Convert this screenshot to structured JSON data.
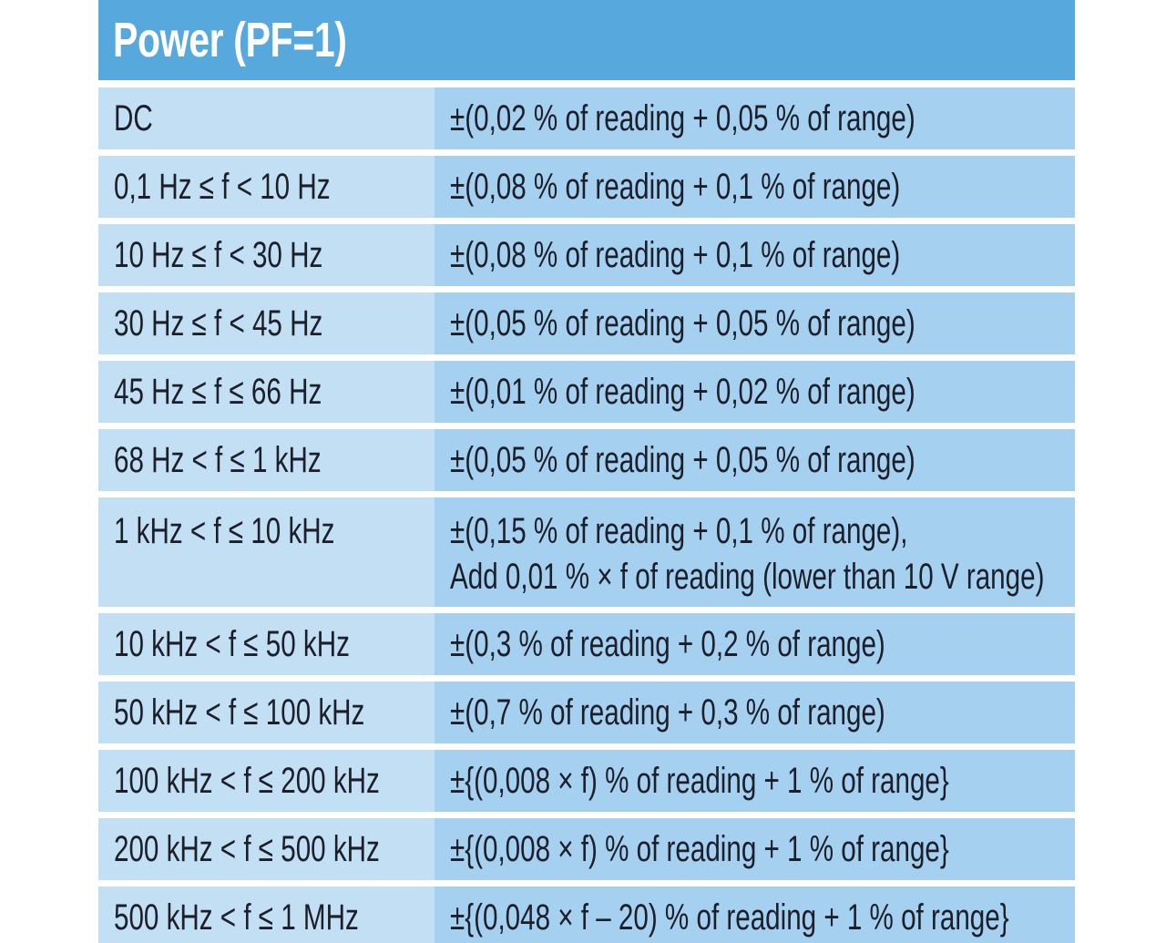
{
  "title": "Power (PF=1)",
  "colors": {
    "header_bg": "#56a8dd",
    "left_cell_bg": "#c3dff4",
    "right_cell_bg": "#a6d0f0",
    "text": "#1b1f2a"
  },
  "rows": [
    {
      "range": "DC",
      "accuracy": [
        "±(0,02 % of reading + 0,05 % of range)"
      ]
    },
    {
      "range": "0,1 Hz ≤ f < 10 Hz",
      "accuracy": [
        "±(0,08 % of reading + 0,1 % of range)"
      ]
    },
    {
      "range": "10 Hz ≤ f < 30 Hz",
      "accuracy": [
        "±(0,08 % of reading + 0,1 % of range)"
      ]
    },
    {
      "range": "30 Hz ≤ f < 45 Hz",
      "accuracy": [
        "±(0,05 % of reading + 0,05 % of range)"
      ]
    },
    {
      "range": "45 Hz ≤ f ≤ 66 Hz",
      "accuracy": [
        "±(0,01 % of reading + 0,02 % of range)"
      ]
    },
    {
      "range": "68 Hz < f ≤ 1 kHz",
      "accuracy": [
        "±(0,05 % of reading + 0,05 % of range)"
      ]
    },
    {
      "range": "1 kHz < f ≤ 10 kHz",
      "accuracy": [
        "±(0,15 % of reading + 0,1 % of range),",
        "Add 0,01 % × f of reading (lower than 10 V range)"
      ]
    },
    {
      "range": "10 kHz < f ≤ 50 kHz",
      "accuracy": [
        "±(0,3 % of reading + 0,2 % of range)"
      ]
    },
    {
      "range": "50 kHz < f ≤ 100 kHz",
      "accuracy": [
        "±(0,7 % of reading + 0,3 % of range)"
      ]
    },
    {
      "range": "100 kHz < f ≤ 200 kHz",
      "accuracy": [
        "±{(0,008 × f) % of reading + 1 % of range}"
      ]
    },
    {
      "range": "200 kHz < f ≤ 500 kHz",
      "accuracy": [
        "±{(0,008 × f) % of reading + 1 % of range}"
      ]
    },
    {
      "range": "500 kHz < f ≤ 1 MHz",
      "accuracy": [
        "±{(0,048 × f – 20) % of reading + 1 % of range}"
      ]
    }
  ]
}
